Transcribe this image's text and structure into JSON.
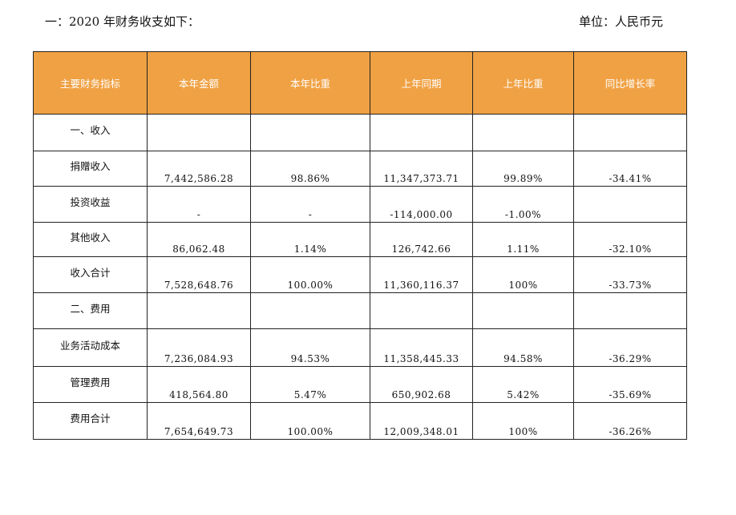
{
  "heading": {
    "title": "一：2020 年财务收支如下：",
    "unit": "单位：人民币元"
  },
  "table": {
    "headers": [
      "主要财务指标",
      "本年金额",
      "本年比重",
      "上年同期",
      "上年比重",
      "同比增长率"
    ],
    "rows": [
      {
        "label": "一、收入",
        "cells": [
          "",
          "",
          "",
          "",
          ""
        ]
      },
      {
        "label": "捐赠收入",
        "cells": [
          "7,442,586.28",
          "98.86%",
          "11,347,373.71",
          "99.89%",
          "-34.41%"
        ]
      },
      {
        "label": "投资收益",
        "cells": [
          "-",
          "-",
          "-114,000.00",
          "-1.00%",
          ""
        ]
      },
      {
        "label": "其他收入",
        "cells": [
          "86,062.48",
          "1.14%",
          "126,742.66",
          "1.11%",
          "-32.10%"
        ]
      },
      {
        "label": "收入合计",
        "cells": [
          "7,528,648.76",
          "100.00%",
          "11,360,116.37",
          "100%",
          "-33.73%"
        ]
      },
      {
        "label": "二、费用",
        "cells": [
          "",
          "",
          "",
          "",
          ""
        ]
      },
      {
        "label": "业务活动成本",
        "cells": [
          "7,236,084.93",
          "94.53%",
          "11,358,445.33",
          "94.58%",
          "-36.29%"
        ]
      },
      {
        "label": "管理费用",
        "cells": [
          "418,564.80",
          "5.47%",
          "650,902.68",
          "5.42%",
          "-35.69%"
        ]
      },
      {
        "label": "费用合计",
        "cells": [
          "7,654,649.73",
          "100.00%",
          "12,009,348.01",
          "100%",
          "-36.26%"
        ]
      }
    ]
  },
  "colors": {
    "header_bg": "#f0a143",
    "header_text": "#ffffff",
    "border": "#222222"
  }
}
